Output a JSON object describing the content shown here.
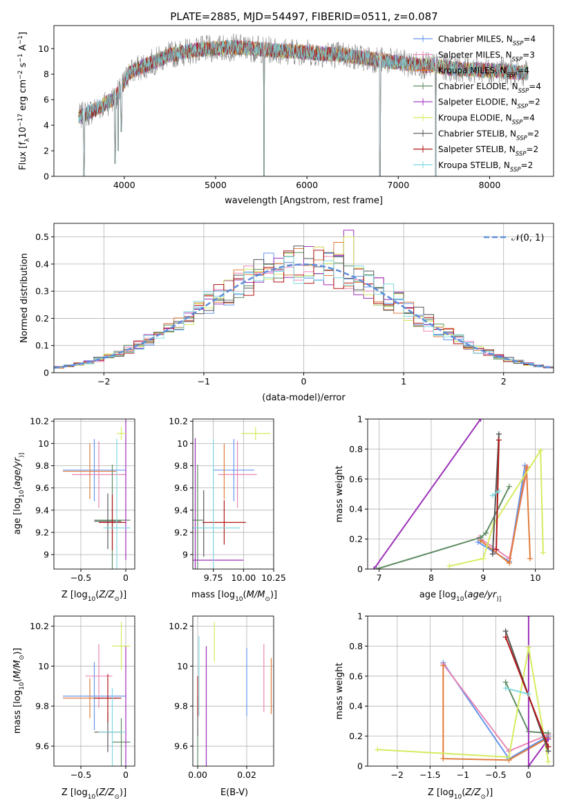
{
  "figure_title": "PLATE=2885, MJD=54497, FIBERID=0511, z=0.087",
  "models": [
    {
      "id": "chab_miles",
      "imf": "Chabrier",
      "lib": "MILES",
      "nssp": "4",
      "color": "#6495ed"
    },
    {
      "id": "salp_miles",
      "imf": "Salpeter",
      "lib": "MILES",
      "nssp": "3",
      "color": "#e985b4"
    },
    {
      "id": "krou_miles",
      "imf": "Kroupa",
      "lib": "MILES",
      "nssp": "4",
      "color": "#e07b39"
    },
    {
      "id": "chab_elodie",
      "imf": "Chabrier",
      "lib": "ELODIE",
      "nssp": "4",
      "color": "#5c8a60"
    },
    {
      "id": "salp_elodie",
      "imf": "Salpeter",
      "lib": "ELODIE",
      "nssp": "2",
      "color": "#9c2fb8"
    },
    {
      "id": "krou_elodie",
      "imf": "Kroupa",
      "lib": "ELODIE",
      "nssp": "4",
      "color": "#d4ec5e"
    },
    {
      "id": "chab_stelib",
      "imf": "Chabrier",
      "lib": "STELIB",
      "nssp": "2",
      "color": "#555555"
    },
    {
      "id": "salp_stelib",
      "imf": "Salpeter",
      "lib": "STELIB",
      "nssp": "2",
      "color": "#b01515"
    },
    {
      "id": "krou_stelib",
      "imf": "Kroupa",
      "lib": "STELIB",
      "nssp": "2",
      "color": "#7fd8e0"
    }
  ],
  "chart_data": [
    {
      "id": "spectrum",
      "type": "line",
      "xlabel": "wavelength [Angstrom, rest frame]",
      "ylabel_parts": [
        "Flux [f",
        "λ",
        "10",
        "−17",
        " erg cm",
        "−2",
        " s",
        "−1",
        " A",
        "−1",
        "]"
      ],
      "xlim": [
        3230,
        8700
      ],
      "ylim": [
        0,
        11.8
      ],
      "xticks": [
        4000,
        5000,
        6000,
        7000,
        8000
      ],
      "yticks": [
        0,
        2,
        4,
        6,
        8,
        10
      ],
      "legend": "top-right",
      "grid": false,
      "data_color": "#808080",
      "continuum_knots_x": [
        3500,
        3700,
        3850,
        3950,
        4050,
        4300,
        4500,
        4800,
        5200,
        5600,
        6000,
        6400,
        6800,
        7100,
        7400,
        7700,
        8000,
        8400
      ],
      "continuum_knots_y": [
        4.6,
        5.3,
        5.9,
        6.6,
        8.1,
        8.9,
        9.5,
        9.9,
        10.1,
        9.9,
        9.7,
        9.5,
        9.1,
        8.8,
        8.6,
        8.4,
        8.3,
        8.1
      ],
      "features": [
        [
          3934,
          2.0
        ],
        [
          3969,
          3.5
        ],
        [
          5530,
          0.0
        ],
        [
          6800,
          0.0
        ],
        [
          7410,
          0.0
        ],
        [
          3560,
          0.0
        ],
        [
          3900,
          1.0
        ]
      ]
    },
    {
      "id": "residual_hist",
      "type": "histogram",
      "xlabel": "(data-model)/error",
      "ylabel": "Normed distribution",
      "xlim": [
        -2.5,
        2.5
      ],
      "ylim": [
        0,
        0.55
      ],
      "xticks": [
        -2,
        -1,
        0,
        1,
        2
      ],
      "yticks": [
        0.0,
        0.1,
        0.2,
        0.3,
        0.4,
        0.5
      ],
      "bins": 50,
      "grid": true,
      "legend": "top-right",
      "gaussian_label": "𝒩(0, 1)",
      "gaussian_color": "#5b8ddc",
      "peaks": {
        "salp_elodie": 0.525,
        "krou_elodie": 0.5,
        "krou_miles": 0.48
      }
    },
    {
      "id": "age_vs_z",
      "type": "errorbar",
      "xlabel_parts": [
        "Z [log",
        "10",
        "(",
        "Z/Z",
        "⊙",
        ")]"
      ],
      "ylabel_parts": [
        "age  [log",
        "10",
        "(",
        "age/yr",
        ")]"
      ],
      "xlim": [
        -0.8,
        0.1
      ],
      "ylim": [
        8.87,
        10.22
      ],
      "xticks": [
        -0.5,
        0.0
      ],
      "yticks": [
        9.0,
        9.2,
        9.4,
        9.6,
        9.8,
        10.0,
        10.2
      ],
      "grid": true,
      "points": [
        {
          "model": "chab_miles",
          "x": -0.35,
          "xerr": 0.35,
          "y": 9.76,
          "yerr": 0.28
        },
        {
          "model": "salp_miles",
          "x": -0.3,
          "xerr": 0.3,
          "y": 9.72,
          "yerr": 0.3
        },
        {
          "model": "krou_miles",
          "x": -0.4,
          "xerr": 0.3,
          "y": 9.75,
          "yerr": 0.25
        },
        {
          "model": "chab_elodie",
          "x": -0.15,
          "xerr": 0.2,
          "y": 9.31,
          "yerr": 0.5
        },
        {
          "model": "salp_elodie",
          "x": 0.0,
          "xerr": 0.0,
          "y": 9.75,
          "yerr": 0.8
        },
        {
          "model": "krou_elodie",
          "x": -0.05,
          "xerr": 0.05,
          "y": 10.09,
          "yerr": 0.06
        },
        {
          "model": "chab_stelib",
          "x": -0.2,
          "xerr": 0.15,
          "y": 9.3,
          "yerr": 0.25
        },
        {
          "model": "salp_stelib",
          "x": -0.15,
          "xerr": 0.15,
          "y": 9.29,
          "yerr": 0.25
        },
        {
          "model": "krou_stelib",
          "x": -0.1,
          "xerr": 0.15,
          "y": 9.24,
          "yerr": 0.8
        }
      ]
    },
    {
      "id": "age_vs_mass",
      "type": "errorbar",
      "xlabel_parts": [
        "mass [log",
        "10",
        "(",
        "M/M",
        "⊙",
        ")]"
      ],
      "xlim": [
        9.58,
        10.25
      ],
      "ylim": [
        8.87,
        10.22
      ],
      "xticks": [
        9.75,
        10.0,
        10.25
      ],
      "xticklabels": [
        "9.75",
        "10.00",
        "10.25"
      ],
      "yticks": [
        9.0,
        9.2,
        9.4,
        9.6,
        9.8,
        10.0,
        10.2
      ],
      "grid": true,
      "points": [
        {
          "model": "chab_miles",
          "x": 9.92,
          "xerr": 0.17,
          "y": 9.76,
          "yerr": 0.28
        },
        {
          "model": "salp_miles",
          "x": 9.95,
          "xerr": 0.16,
          "y": 9.72,
          "yerr": 0.3
        },
        {
          "model": "krou_miles",
          "x": 9.84,
          "xerr": 0.0,
          "y": 9.75,
          "yerr": 0.25
        },
        {
          "model": "chab_elodie",
          "x": 9.62,
          "xerr": 0.05,
          "y": 9.31,
          "yerr": 0.5
        },
        {
          "model": "salp_elodie",
          "x": 9.6,
          "xerr": 0.4,
          "y": 8.95,
          "yerr": 1.1
        },
        {
          "model": "krou_elodie",
          "x": 10.1,
          "xerr": 0.12,
          "y": 10.09,
          "yerr": 0.06
        },
        {
          "model": "chab_stelib",
          "x": 9.67,
          "xerr": 0.0,
          "y": 9.28,
          "yerr": 0.3
        },
        {
          "model": "salp_stelib",
          "x": 9.84,
          "xerr": 0.18,
          "y": 9.29,
          "yerr": 0.2
        },
        {
          "model": "krou_stelib",
          "x": 9.75,
          "xerr": 0.22,
          "y": 9.24,
          "yerr": 0.8
        }
      ]
    },
    {
      "id": "weight_vs_age",
      "type": "line",
      "xlabel_parts": [
        "age  [log",
        "10",
        "(",
        "age/yr",
        ")]"
      ],
      "ylabel": "mass weight",
      "xlim": [
        6.78,
        10.35
      ],
      "ylim": [
        0,
        1.0
      ],
      "xticks": [
        7,
        8,
        9,
        10
      ],
      "yticks": [
        0.0,
        0.2,
        0.4,
        0.6,
        0.8,
        1.0
      ],
      "grid": true,
      "series": [
        {
          "model": "chab_miles",
          "x": [
            8.9,
            9.5,
            9.8
          ],
          "y": [
            0.18,
            0.05,
            0.69
          ]
        },
        {
          "model": "salp_miles",
          "x": [
            8.92,
            9.5,
            9.85
          ],
          "y": [
            0.21,
            0.07,
            0.68
          ]
        },
        {
          "model": "krou_miles",
          "x": [
            8.95,
            9.5,
            9.83,
            9.9
          ],
          "y": [
            0.19,
            0.04,
            0.68,
            0.07
          ]
        },
        {
          "model": "chab_elodie",
          "x": [
            6.95,
            8.95,
            9.05,
            9.5
          ],
          "y": [
            0.0,
            0.21,
            0.24,
            0.55
          ]
        },
        {
          "model": "salp_elodie",
          "x": [
            6.9,
            8.95
          ],
          "y": [
            0.0,
            1.0
          ]
        },
        {
          "model": "krou_elodie",
          "x": [
            8.35,
            9.0,
            9.2,
            10.1,
            10.15
          ],
          "y": [
            0.02,
            0.07,
            0.3,
            0.79,
            0.11
          ]
        },
        {
          "model": "chab_stelib",
          "x": [
            9.18,
            9.3
          ],
          "y": [
            0.1,
            0.9
          ]
        },
        {
          "model": "salp_stelib",
          "x": [
            9.25,
            9.3
          ],
          "y": [
            0.13,
            0.86
          ]
        },
        {
          "model": "krou_stelib",
          "x": [
            9.18,
            9.3
          ],
          "y": [
            0.49,
            0.52
          ]
        }
      ]
    },
    {
      "id": "mass_vs_z",
      "type": "errorbar",
      "xlabel_parts": [
        "Z [log",
        "10",
        "(",
        "Z/Z",
        "⊙",
        ")]"
      ],
      "ylabel_parts": [
        "mass [log",
        "10",
        "(",
        "M/M",
        "⊙",
        ")]"
      ],
      "xlim": [
        -0.8,
        0.1
      ],
      "ylim": [
        9.5,
        10.25
      ],
      "xticks": [
        -0.5,
        0.0
      ],
      "yticks": [
        9.6,
        9.8,
        10.0,
        10.2
      ],
      "grid": true,
      "points": [
        {
          "model": "chab_miles",
          "x": -0.35,
          "xerr": 0.35,
          "y": 9.85,
          "yerr": 0.17
        },
        {
          "model": "salp_miles",
          "x": -0.3,
          "xerr": 0.15,
          "y": 9.95,
          "yerr": 0.16
        },
        {
          "model": "krou_miles",
          "x": -0.4,
          "xerr": 0.3,
          "y": 9.84,
          "yerr": 0.1
        },
        {
          "model": "chab_elodie",
          "x": -0.05,
          "xerr": 0.1,
          "y": 9.62,
          "yerr": 0.12
        },
        {
          "model": "salp_elodie",
          "x": 0.0,
          "xerr": 0.0,
          "y": 9.7,
          "yerr": 0.4
        },
        {
          "model": "krou_elodie",
          "x": -0.05,
          "xerr": 0.1,
          "y": 10.1,
          "yerr": 0.12
        },
        {
          "model": "chab_stelib",
          "x": -0.2,
          "xerr": 0.15,
          "y": 9.67,
          "yerr": 0.1
        },
        {
          "model": "salp_stelib",
          "x": -0.2,
          "xerr": 0.15,
          "y": 9.84,
          "yerr": 0.12
        },
        {
          "model": "krou_stelib",
          "x": -0.15,
          "xerr": 0.15,
          "y": 9.67,
          "yerr": 0.22
        }
      ]
    },
    {
      "id": "mass_vs_ebv",
      "type": "errorbar",
      "xlabel": "E(B-V)",
      "xlim": [
        -0.002,
        0.031
      ],
      "ylim": [
        9.5,
        10.25
      ],
      "xticks": [
        0.0,
        0.02
      ],
      "xticklabels": [
        "0.00",
        "0.02"
      ],
      "yticks": [
        9.6,
        9.8,
        10.0,
        10.2
      ],
      "grid": true,
      "points": [
        {
          "model": "chab_miles",
          "x": 0.02,
          "xerr": 0,
          "y": 9.92,
          "yerr": 0.17
        },
        {
          "model": "salp_miles",
          "x": 0.027,
          "xerr": 0,
          "y": 9.94,
          "yerr": 0.17
        },
        {
          "model": "krou_miles",
          "x": 0.03,
          "xerr": 0,
          "y": 9.9,
          "yerr": 0.14
        },
        {
          "model": "chab_elodie",
          "x": 0.0,
          "xerr": 0,
          "y": 9.6,
          "yerr": 0.1
        },
        {
          "model": "salp_elodie",
          "x": 0.0035,
          "xerr": 0,
          "y": 9.75,
          "yerr": 0.35
        },
        {
          "model": "krou_elodie",
          "x": 0.0068,
          "xerr": 0,
          "y": 10.12,
          "yerr": 0.1
        },
        {
          "model": "chab_stelib",
          "x": 0.0,
          "xerr": 0,
          "y": 9.75,
          "yerr": 0.1
        },
        {
          "model": "salp_stelib",
          "x": 0.0,
          "xerr": 0,
          "y": 9.85,
          "yerr": 0.1
        },
        {
          "model": "krou_stelib",
          "x": 0.0005,
          "xerr": 0,
          "y": 9.95,
          "yerr": 0.2
        }
      ]
    },
    {
      "id": "weight_vs_z",
      "type": "line",
      "xlabel_parts": [
        "Z [log",
        "10",
        "(",
        "Z/Z",
        "⊙",
        ")]"
      ],
      "ylabel": "mass weight",
      "xlim": [
        -2.45,
        0.38
      ],
      "ylim": [
        0,
        1.0
      ],
      "xticks": [
        -2.0,
        -1.5,
        -1.0,
        -0.5,
        0.0
      ],
      "yticks": [
        0.0,
        0.2,
        0.4,
        0.6,
        0.8,
        1.0
      ],
      "grid": true,
      "series": [
        {
          "model": "chab_miles",
          "x": [
            -1.3,
            -0.3,
            0.3
          ],
          "y": [
            0.69,
            0.05,
            0.2
          ]
        },
        {
          "model": "salp_miles",
          "x": [
            -1.3,
            -0.3,
            0.3
          ],
          "y": [
            0.68,
            0.1,
            0.21
          ]
        },
        {
          "model": "krou_miles",
          "x": [
            -1.3,
            -1.3,
            -0.3,
            0.3
          ],
          "y": [
            0.67,
            0.05,
            0.04,
            0.19
          ]
        },
        {
          "model": "chab_elodie",
          "x": [
            -0.35,
            0.0,
            0.3
          ],
          "y": [
            0.56,
            0.23,
            0.22
          ]
        },
        {
          "model": "salp_elodie",
          "x": [
            0.0,
            0.0,
            0.3
          ],
          "y": [
            1.0,
            0.0,
            0.18
          ]
        },
        {
          "model": "krou_elodie",
          "x": [
            -2.3,
            -0.3,
            0.0,
            0.3
          ],
          "y": [
            0.11,
            0.06,
            0.79,
            0.03
          ]
        },
        {
          "model": "chab_stelib",
          "x": [
            -0.35,
            0.3
          ],
          "y": [
            0.9,
            0.1
          ]
        },
        {
          "model": "salp_stelib",
          "x": [
            -0.35,
            0.3
          ],
          "y": [
            0.86,
            0.13
          ]
        },
        {
          "model": "krou_stelib",
          "x": [
            -0.35,
            0.0
          ],
          "y": [
            0.52,
            0.48
          ]
        }
      ]
    }
  ]
}
